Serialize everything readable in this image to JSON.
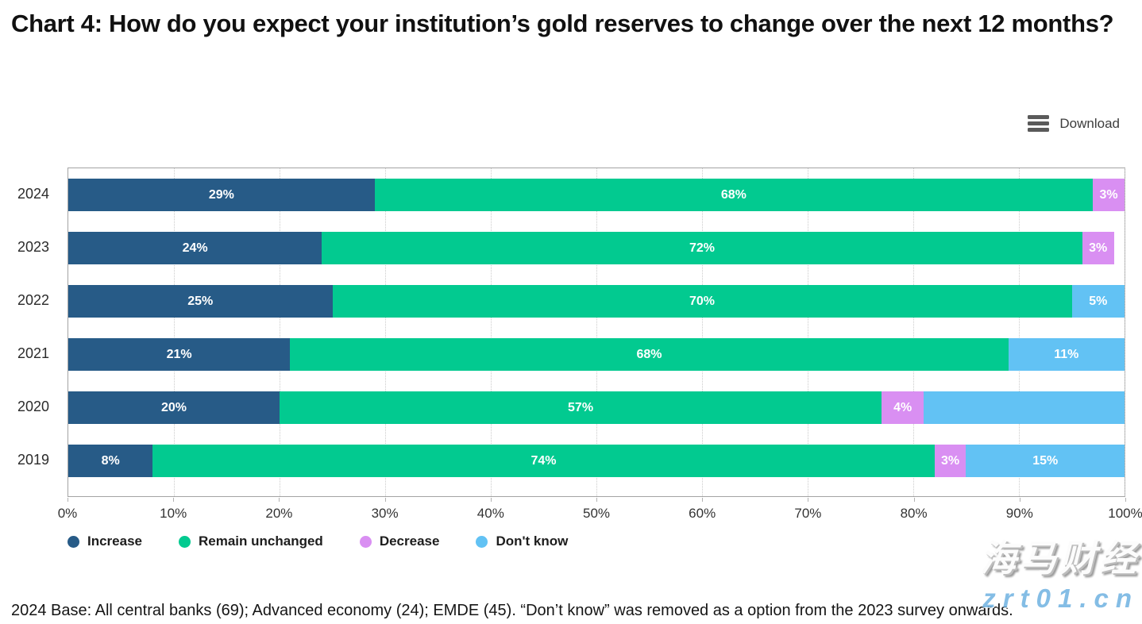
{
  "title": "Chart 4: How do you expect your institution’s gold reserves to change over the next 12 months?",
  "toolbar": {
    "download_label": "Download"
  },
  "chart_data": {
    "type": "bar",
    "orientation": "horizontal",
    "stacked": true,
    "categories": [
      "2024",
      "2023",
      "2022",
      "2021",
      "2020",
      "2019"
    ],
    "x_axis": {
      "min": 0,
      "max": 100,
      "ticks": [
        "0%",
        "10%",
        "20%",
        "30%",
        "40%",
        "50%",
        "60%",
        "70%",
        "80%",
        "90%",
        "100%"
      ],
      "grid": "dotted-vertical"
    },
    "series_colors": {
      "Increase": "#275b87",
      "Remain unchanged": "#02ca90",
      "Decrease": "#d98ff2",
      "Don't know": "#62c2f4"
    },
    "series": [
      {
        "name": "Increase",
        "values": [
          29,
          24,
          25,
          21,
          20,
          8
        ]
      },
      {
        "name": "Remain unchanged",
        "values": [
          68,
          72,
          70,
          68,
          57,
          74
        ]
      },
      {
        "name": "Decrease",
        "values": [
          3,
          3,
          0,
          0,
          4,
          3
        ]
      },
      {
        "name": "Don't know",
        "values": [
          0,
          0,
          5,
          11,
          19,
          15
        ]
      }
    ],
    "rows": [
      {
        "year": "2024",
        "segments": [
          {
            "series": "Increase",
            "value": 29,
            "label": "29%"
          },
          {
            "series": "Remain unchanged",
            "value": 68,
            "label": "68%"
          },
          {
            "series": "Decrease",
            "value": 3,
            "label": "3%"
          }
        ]
      },
      {
        "year": "2023",
        "segments": [
          {
            "series": "Increase",
            "value": 24,
            "label": "24%"
          },
          {
            "series": "Remain unchanged",
            "value": 72,
            "label": "72%"
          },
          {
            "series": "Decrease",
            "value": 3,
            "label": "3%"
          }
        ]
      },
      {
        "year": "2022",
        "segments": [
          {
            "series": "Increase",
            "value": 25,
            "label": "25%"
          },
          {
            "series": "Remain unchanged",
            "value": 70,
            "label": "70%"
          },
          {
            "series": "Don't know",
            "value": 5,
            "label": "5%"
          }
        ]
      },
      {
        "year": "2021",
        "segments": [
          {
            "series": "Increase",
            "value": 21,
            "label": "21%"
          },
          {
            "series": "Remain unchanged",
            "value": 68,
            "label": "68%"
          },
          {
            "series": "Don't know",
            "value": 11,
            "label": "11%"
          }
        ]
      },
      {
        "year": "2020",
        "segments": [
          {
            "series": "Increase",
            "value": 20,
            "label": "20%"
          },
          {
            "series": "Remain unchanged",
            "value": 57,
            "label": "57%"
          },
          {
            "series": "Decrease",
            "value": 4,
            "label": "4%"
          },
          {
            "series": "Don't know",
            "value": 19,
            "label": ""
          }
        ]
      },
      {
        "year": "2019",
        "segments": [
          {
            "series": "Increase",
            "value": 8,
            "label": "8%"
          },
          {
            "series": "Remain unchanged",
            "value": 74,
            "label": "74%"
          },
          {
            "series": "Decrease",
            "value": 3,
            "label": "3%"
          },
          {
            "series": "Don't know",
            "value": 15,
            "label": "15%"
          }
        ]
      }
    ],
    "legend_position": "bottom-left"
  },
  "legend": {
    "items": [
      {
        "label": "Increase",
        "color": "#275b87"
      },
      {
        "label": "Remain unchanged",
        "color": "#02ca90"
      },
      {
        "label": "Decrease",
        "color": "#d98ff2"
      },
      {
        "label": "Don't know",
        "color": "#62c2f4"
      }
    ]
  },
  "footnote": "2024 Base: All central banks (69); Advanced economy (24); EMDE (45). “Don’t know” was removed as a option from the 2023 survey onwards.",
  "watermark": {
    "line1": "海马财经",
    "line2": "zrt01.cn"
  }
}
